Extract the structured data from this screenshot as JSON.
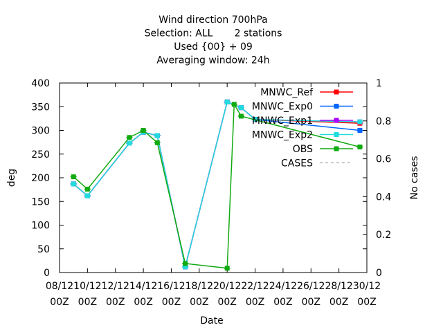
{
  "chart_data": {
    "type": "line",
    "title_lines": [
      "Wind direction 700hPa",
      "Selection: ALL       2 stations",
      "Used {00} + 09",
      "Averaging window: 24h"
    ],
    "xlabel": "Date",
    "ylabel": "deg",
    "y2label": "No cases",
    "x_ticks": [
      {
        "top": "08/12",
        "bottom": "00Z"
      },
      {
        "top": "10/12",
        "bottom": "00Z"
      },
      {
        "top": "12/12",
        "bottom": "00Z"
      },
      {
        "top": "14/12",
        "bottom": "00Z"
      },
      {
        "top": "16/12",
        "bottom": "00Z"
      },
      {
        "top": "18/12",
        "bottom": "00Z"
      },
      {
        "top": "20/12",
        "bottom": "00Z"
      },
      {
        "top": "22/12",
        "bottom": "00Z"
      },
      {
        "top": "24/12",
        "bottom": "00Z"
      },
      {
        "top": "26/12",
        "bottom": "00Z"
      },
      {
        "top": "28/12",
        "bottom": "00Z"
      },
      {
        "top": "30/12",
        "bottom": "00Z"
      }
    ],
    "xlim": [
      "2021-12-08T00:00",
      "2021-12-30T00:00"
    ],
    "ylim": [
      0,
      400
    ],
    "y_ticks": [
      "0",
      "50",
      "100",
      "150",
      "200",
      "250",
      "300",
      "350",
      "400"
    ],
    "y2lim": [
      0,
      1
    ],
    "y2_ticks": [
      "0",
      "0.2",
      "0.4",
      "0.6",
      "0.8",
      "1"
    ],
    "legend_position": "top-right",
    "series": [
      {
        "name": "MNWC_Ref",
        "color": "#ff0000",
        "points": [
          [
            "2021-12-09T00:00",
            187
          ],
          [
            "2021-12-10T00:00",
            162
          ],
          [
            "2021-12-13T00:00",
            273
          ],
          [
            "2021-12-14T00:00",
            296
          ],
          [
            "2021-12-15T00:00",
            289
          ],
          [
            "2021-12-17T00:00",
            12
          ],
          [
            "2021-12-20T00:00",
            360
          ],
          [
            "2021-12-21T00:00",
            348
          ],
          [
            "2021-12-22T00:00",
            323
          ],
          [
            "2021-12-29T12:00",
            315
          ]
        ]
      },
      {
        "name": "MNWC_Exp0",
        "color": "#0066ff",
        "points": [
          [
            "2021-12-09T00:00",
            187
          ],
          [
            "2021-12-10T00:00",
            162
          ],
          [
            "2021-12-13T00:00",
            273
          ],
          [
            "2021-12-14T00:00",
            296
          ],
          [
            "2021-12-15T00:00",
            289
          ],
          [
            "2021-12-17T00:00",
            12
          ],
          [
            "2021-12-20T00:00",
            360
          ],
          [
            "2021-12-21T00:00",
            348
          ],
          [
            "2021-12-22T00:00",
            323
          ],
          [
            "2021-12-29T12:00",
            300
          ]
        ]
      },
      {
        "name": "MNWC_Exp1",
        "color": "#aa00ff",
        "points": [
          [
            "2021-12-09T00:00",
            187
          ],
          [
            "2021-12-10T00:00",
            162
          ],
          [
            "2021-12-13T00:00",
            273
          ],
          [
            "2021-12-14T00:00",
            296
          ],
          [
            "2021-12-15T00:00",
            289
          ],
          [
            "2021-12-17T00:00",
            12
          ],
          [
            "2021-12-20T00:00",
            360
          ],
          [
            "2021-12-21T00:00",
            348
          ],
          [
            "2021-12-22T00:00",
            323
          ],
          [
            "2021-12-29T12:00",
            318
          ]
        ]
      },
      {
        "name": "MNWC_Exp2",
        "color": "#22dddd",
        "points": [
          [
            "2021-12-09T00:00",
            187
          ],
          [
            "2021-12-10T00:00",
            162
          ],
          [
            "2021-12-13T00:00",
            273
          ],
          [
            "2021-12-14T00:00",
            296
          ],
          [
            "2021-12-15T00:00",
            289
          ],
          [
            "2021-12-17T00:00",
            12
          ],
          [
            "2021-12-20T00:00",
            360
          ],
          [
            "2021-12-21T00:00",
            348
          ],
          [
            "2021-12-22T00:00",
            323
          ],
          [
            "2021-12-29T12:00",
            318
          ]
        ]
      },
      {
        "name": "OBS",
        "color": "#11aa11",
        "points": [
          [
            "2021-12-09T00:00",
            202
          ],
          [
            "2021-12-10T00:00",
            176
          ],
          [
            "2021-12-13T00:00",
            285
          ],
          [
            "2021-12-14T00:00",
            300
          ],
          [
            "2021-12-15T00:00",
            274
          ],
          [
            "2021-12-17T00:00",
            19
          ],
          [
            "2021-12-20T00:00",
            9
          ],
          [
            "2021-12-20T12:00",
            355
          ],
          [
            "2021-12-21T00:00",
            330
          ],
          [
            "2021-12-29T12:00",
            265
          ]
        ]
      }
    ],
    "cases_series": {
      "name": "CASES",
      "color": "#888888",
      "dashed": true,
      "points": []
    }
  }
}
